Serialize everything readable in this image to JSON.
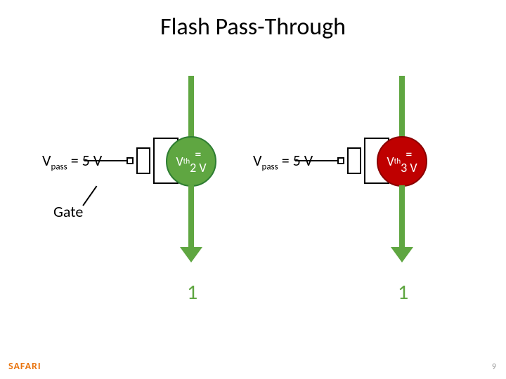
{
  "title": "Flash Pass-Through",
  "colors": {
    "green": "#5fa641",
    "darkgreen": "#2e7d32",
    "red_fill": "#bf0000",
    "red_stroke": "#8a0000",
    "black": "#000000",
    "white": "#ffffff",
    "grey": "#999999",
    "orange": "#e9730c"
  },
  "left": {
    "vpass_label_html": "V<sub>pass</sub> = 5 V",
    "vth_html": "V<sub>th</sub> =<br>2 V",
    "circle_fill": "#5fa641",
    "circle_stroke": "#2e7d32",
    "wire_color": "#5fa641",
    "circle_text_color": "#ffffff",
    "result": "1",
    "result_color": "#5fa641"
  },
  "right": {
    "vpass_label_html": "V<sub>pass</sub> = 5 V",
    "vth_html": "V<sub>th</sub> =<br>3 V",
    "circle_fill": "#bf0000",
    "circle_stroke": "#8a0000",
    "wire_color": "#5fa641",
    "circle_text_color": "#ffffff",
    "result": "1",
    "result_color": "#5fa641"
  },
  "gate_label": "Gate",
  "footer_logo": "SAFARI",
  "page_number": "9",
  "fontsize": {
    "title": 34,
    "label": 22,
    "vth": 18,
    "result": 30
  }
}
